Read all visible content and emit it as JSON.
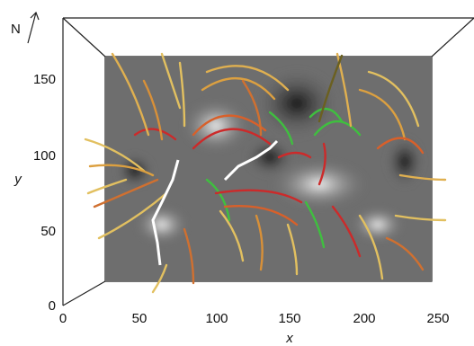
{
  "figure": {
    "north_label": "N",
    "x_axis": {
      "title": "x",
      "ticks": [
        "0",
        "50",
        "100",
        "150",
        "200",
        "250"
      ],
      "range": [
        0,
        270
      ]
    },
    "y_axis": {
      "title": "y",
      "ticks": [
        "0",
        "50",
        "100",
        "150"
      ],
      "range": [
        0,
        185
      ]
    },
    "colors": {
      "magnetogram_positive": "#f2f2f2",
      "magnetogram_negative": "#1a1a1a",
      "field_lines": [
        "#e8c860",
        "#d99a3a",
        "#d8602a",
        "#cc2a2a",
        "#3fbf3f"
      ],
      "neutral_line": "#ffffff"
    }
  }
}
